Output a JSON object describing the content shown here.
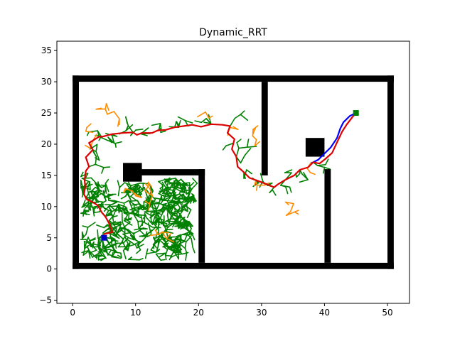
{
  "chart_data": {
    "type": "line",
    "title": "Dynamic_RRT",
    "xlabel": "",
    "ylabel": "",
    "xlim": [
      -2.5,
      53.5
    ],
    "ylim": [
      -5.5,
      36.5
    ],
    "xticks": [
      0,
      10,
      20,
      30,
      40,
      50
    ],
    "yticks": [
      -5,
      0,
      5,
      10,
      15,
      20,
      25,
      30,
      35
    ],
    "grid": false,
    "legend": "none",
    "colors": {
      "obstacle": "#000000",
      "tree": "#008000",
      "invalid_branches": "#ff8c00",
      "initial_path": "#0000ff",
      "replanned_path": "#dd0000",
      "start": "#0000cc",
      "goal": "#008000"
    },
    "start": [
      5,
      5
    ],
    "goal": [
      45,
      25
    ],
    "obstacles": [
      {
        "name": "outer-bottom-wall",
        "x0": 0,
        "y0": 0,
        "x1": 51,
        "y1": 1
      },
      {
        "name": "outer-top-wall",
        "x0": 0,
        "y0": 30,
        "x1": 51,
        "y1": 31
      },
      {
        "name": "outer-left-wall",
        "x0": 0,
        "y0": 0,
        "x1": 1,
        "y1": 31
      },
      {
        "name": "outer-right-wall",
        "x0": 50,
        "y0": 0,
        "x1": 51,
        "y1": 31
      },
      {
        "name": "inner-horizontal-wall",
        "x0": 10,
        "y0": 15,
        "x1": 21,
        "y1": 16
      },
      {
        "name": "inner-vertical-wall-left",
        "x0": 20,
        "y0": 1,
        "x1": 21,
        "y1": 16
      },
      {
        "name": "upper-divider-wall",
        "x0": 30,
        "y0": 15,
        "x1": 31,
        "y1": 30
      },
      {
        "name": "lower-divider-wall",
        "x0": 40,
        "y0": 1,
        "x1": 41,
        "y1": 16
      },
      {
        "name": "block-left",
        "x0": 8,
        "y0": 14,
        "x1": 11,
        "y1": 17
      },
      {
        "name": "block-right",
        "x0": 37,
        "y0": 18,
        "x1": 40,
        "y1": 21
      }
    ],
    "series": [
      {
        "role": "initial_path",
        "color": "#0000ff",
        "x": [
          45,
          44,
          43,
          42.5,
          42,
          41,
          40,
          39.5,
          39,
          38
        ],
        "y": [
          25,
          24.5,
          23.5,
          22.5,
          21,
          19.5,
          18.5,
          18,
          17.5,
          17
        ]
      },
      {
        "role": "replanned_path",
        "color": "#dd0000",
        "x": [
          5,
          6.3,
          5.8,
          5.2,
          4.6,
          4,
          3.2,
          2.2,
          1.8,
          2,
          1.9,
          2.1,
          2.6,
          2.1,
          3.2,
          2.6,
          4.2,
          4.7,
          6.2,
          7.9,
          9.6,
          10.2,
          11,
          12.6,
          13.5,
          14.8,
          16.2,
          17.6,
          19,
          20.4,
          22,
          23.8,
          25,
          24.6,
          25.7,
          25.3,
          26,
          26.2,
          27.2,
          28.1,
          29.5,
          30.8,
          32,
          32.5,
          33.8,
          35.2,
          36.1,
          37.4,
          38.2,
          39.2,
          40.1,
          41.2,
          42,
          42.8,
          43.5,
          44.4,
          45
        ],
        "y": [
          5.6,
          5.9,
          7.3,
          8.4,
          9.1,
          10.2,
          10.7,
          11.2,
          12,
          13.1,
          14.3,
          15.7,
          16.4,
          17.9,
          19.1,
          20.2,
          21.2,
          21.2,
          21.6,
          21.8,
          21.9,
          21.5,
          21.8,
          21.8,
          22.2,
          22.3,
          22.7,
          22.9,
          23.1,
          22.8,
          23.2,
          23.1,
          22.9,
          21.8,
          20.8,
          19.2,
          18,
          16.4,
          15.5,
          14.6,
          14.1,
          13.6,
          13.1,
          13.5,
          14.3,
          15,
          15.9,
          16.3,
          17.1,
          16.9,
          17.6,
          18.6,
          20.3,
          22,
          23.1,
          24.3,
          25
        ]
      }
    ]
  }
}
